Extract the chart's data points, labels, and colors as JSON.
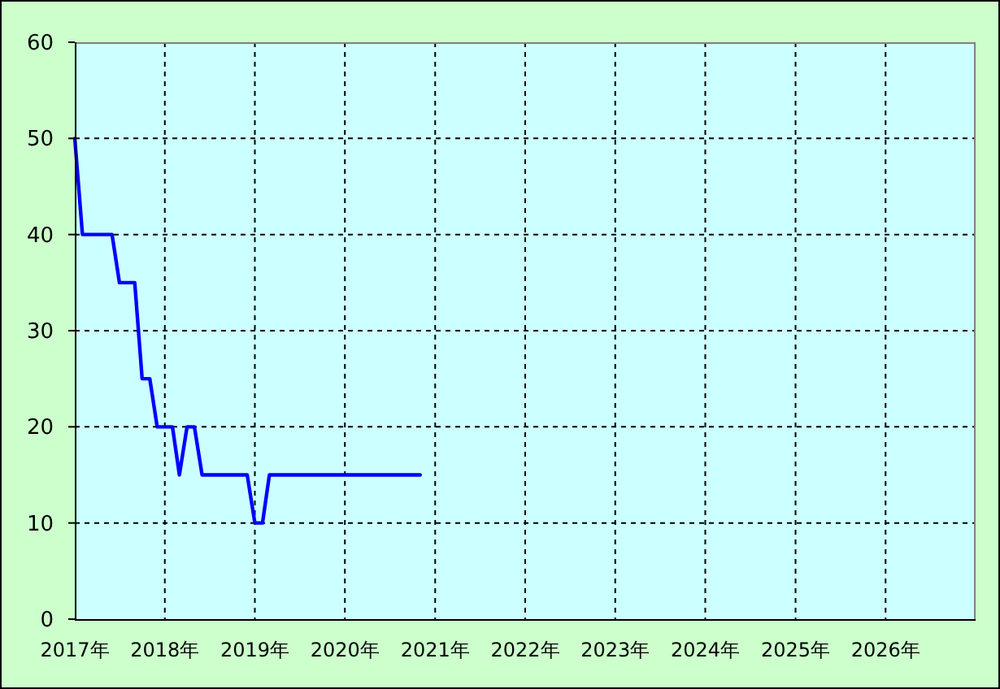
{
  "chart_data": {
    "type": "line",
    "x": [
      "2017-01",
      "2017-02",
      "2017-03",
      "2017-04",
      "2017-05",
      "2017-06",
      "2017-07",
      "2017-08",
      "2017-09",
      "2017-10",
      "2017-11",
      "2017-12",
      "2018-01",
      "2018-02",
      "2018-03",
      "2018-04",
      "2018-05",
      "2018-06",
      "2018-07",
      "2018-08",
      "2018-09",
      "2018-10",
      "2018-11",
      "2018-12",
      "2019-01",
      "2019-02",
      "2019-03",
      "2019-04",
      "2019-05",
      "2019-06",
      "2019-07",
      "2019-08",
      "2019-09",
      "2019-10",
      "2019-11",
      "2019-12",
      "2020-01",
      "2020-02",
      "2020-03",
      "2020-04",
      "2020-05",
      "2020-06",
      "2020-07",
      "2020-08",
      "2020-09",
      "2020-10",
      "2020-11"
    ],
    "series": [
      {
        "color": "#0000ff",
        "values": [
          50,
          40,
          40,
          40,
          40,
          40,
          35,
          35,
          35,
          25,
          25,
          20,
          20,
          20,
          15,
          20,
          20,
          15,
          15,
          15,
          15,
          15,
          15,
          15,
          10,
          10,
          15,
          15,
          15,
          15,
          15,
          15,
          15,
          15,
          15,
          15,
          15,
          15,
          15,
          15,
          15,
          15,
          15,
          15,
          15,
          15,
          15
        ]
      }
    ],
    "xlim": [
      "2017",
      "2027"
    ],
    "xticks": [
      {
        "value": "2017",
        "label": "2017年"
      },
      {
        "value": "2018",
        "label": "2018年"
      },
      {
        "value": "2019",
        "label": "2019年"
      },
      {
        "value": "2020",
        "label": "2020年"
      },
      {
        "value": "2021",
        "label": "2021年"
      },
      {
        "value": "2022",
        "label": "2022年"
      },
      {
        "value": "2023",
        "label": "2023年"
      },
      {
        "value": "2024",
        "label": "2024年"
      },
      {
        "value": "2025",
        "label": "2025年"
      },
      {
        "value": "2026",
        "label": "2026年"
      }
    ],
    "ylim": [
      0,
      60
    ],
    "yticks": [
      0,
      10,
      20,
      30,
      40,
      50,
      60
    ],
    "grid": true
  }
}
